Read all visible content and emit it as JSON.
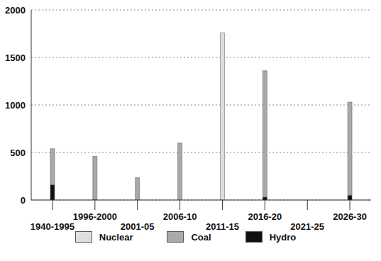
{
  "chart_data": {
    "type": "bar",
    "stacked": true,
    "grid": true,
    "legend": "bottom",
    "categories": [
      "1940-1995",
      "1996-2000",
      "2001-05",
      "2006-10",
      "2011-15",
      "2016-20",
      "2021-25",
      "2026-30"
    ],
    "series": [
      {
        "name": "Nuclear",
        "color": "#dedede",
        "values": [
          0,
          0,
          0,
          0,
          1760,
          0,
          0,
          0
        ]
      },
      {
        "name": "Coal",
        "color": "#a9a9a9",
        "values": [
          380,
          455,
          235,
          600,
          0,
          1330,
          0,
          980
        ]
      },
      {
        "name": "Hydro",
        "color": "#111111",
        "values": [
          160,
          5,
          0,
          0,
          0,
          30,
          0,
          50
        ]
      }
    ],
    "ylim": [
      0,
      2000
    ],
    "yticks": [
      0,
      500,
      1000,
      1500,
      2000
    ]
  }
}
